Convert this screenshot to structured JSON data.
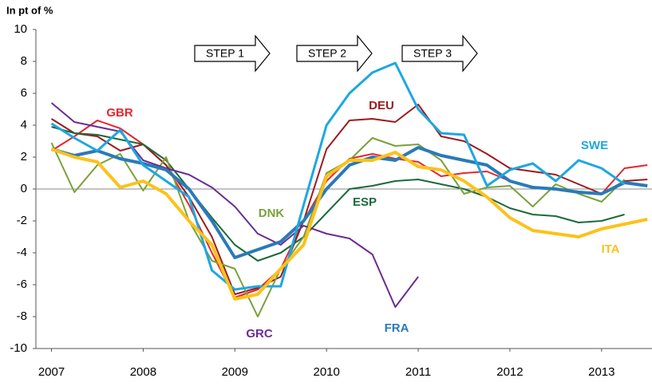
{
  "chart_data": {
    "type": "line",
    "y_label": "In pt of %",
    "xlim": [
      2006.83,
      2013.55
    ],
    "xticks": [
      2007,
      2008,
      2009,
      2010,
      2011,
      2012,
      2013
    ],
    "ylim": [
      -10,
      10
    ],
    "yticks": [
      -10,
      -8,
      -6,
      -4,
      -2,
      0,
      2,
      4,
      6,
      8,
      10
    ],
    "zero_line": true,
    "annotations": [
      "STEP 1",
      "STEP 2",
      "STEP 3"
    ],
    "x": [
      2007,
      2007.25,
      2007.5,
      2007.75,
      2008,
      2008.25,
      2008.5,
      2008.75,
      2009,
      2009.25,
      2009.5,
      2009.75,
      2010,
      2010.25,
      2010.5,
      2010.75,
      2011,
      2011.25,
      2011.5,
      2011.75,
      2012,
      2012.25,
      2012.5,
      2012.75,
      2013,
      2013.25,
      2013.5
    ],
    "series": [
      {
        "name": "GBR",
        "color": "#e8262c",
        "width": 2,
        "values": [
          2.4,
          3.3,
          4.3,
          3.8,
          2.8,
          1.5,
          -1,
          -4,
          -6.8,
          -6.3,
          -5,
          -2,
          0.5,
          1.9,
          2.2,
          1.9,
          1.7,
          0.8,
          1.0,
          1.1,
          0.5,
          0.1,
          0,
          -0.2,
          -0.3,
          1.3,
          1.5
        ]
      },
      {
        "name": "DEU",
        "color": "#9b1b1e",
        "width": 2,
        "values": [
          4.4,
          3.5,
          3.3,
          2.4,
          2.8,
          1.5,
          -0.5,
          -3,
          -6.6,
          -6.2,
          -5.5,
          -2,
          2.5,
          4.3,
          4.4,
          4.2,
          5.3,
          3.3,
          3.0,
          2.2,
          1.3,
          1.1,
          0.9,
          0.3,
          -0.3,
          0.5,
          0.6
        ]
      },
      {
        "name": "ESP",
        "color": "#1a6b3a",
        "width": 2,
        "values": [
          3.9,
          3.5,
          3.4,
          3.1,
          2.8,
          1.8,
          0,
          -1.8,
          -3.5,
          -4.5,
          -4.0,
          -3.0,
          -1.5,
          0,
          0.2,
          0.5,
          0.6,
          0.3,
          0,
          -0.5,
          -1.2,
          -1.6,
          -1.7,
          -2.1,
          -2.0,
          -1.6,
          null
        ]
      },
      {
        "name": "DNK",
        "color": "#7aa03a",
        "width": 2,
        "values": [
          2.9,
          -0.2,
          1.5,
          2.2,
          -0.1,
          2,
          -2,
          -4.5,
          -5,
          -8,
          -5,
          -3,
          1,
          1.8,
          3.2,
          2.7,
          2.8,
          1.8,
          -0.3,
          0.1,
          0.2,
          -1.1,
          0.3,
          -0.3,
          -0.8,
          0.6,
          null
        ]
      },
      {
        "name": "GRC",
        "color": "#6a2c91",
        "width": 2,
        "values": [
          5.4,
          4.2,
          3.9,
          3.6,
          1.8,
          1.3,
          0.9,
          0.1,
          -1.1,
          -2.8,
          -3.5,
          -2.3,
          -2.8,
          -3.1,
          -4.1,
          -7.4,
          -5.5,
          null,
          null,
          null,
          null,
          null,
          null,
          null,
          null,
          null,
          null
        ]
      },
      {
        "name": "FRA",
        "color": "#2a7ab8",
        "width": 4,
        "values": [
          2.5,
          2.1,
          2.4,
          1.9,
          1.6,
          1.2,
          0,
          -2,
          -4.3,
          -3.8,
          -3.3,
          -2.0,
          0,
          1.5,
          2.0,
          1.8,
          2.6,
          2.1,
          1.8,
          1.5,
          0.5,
          0.1,
          0,
          -0.2,
          -0.3,
          0.4,
          0.2
        ]
      },
      {
        "name": "SWE",
        "color": "#1ea7e0",
        "width": 3,
        "values": [
          4.1,
          3.2,
          2.4,
          3.7,
          1.5,
          0.5,
          -0.5,
          -5.1,
          -6.3,
          -6.1,
          -6.1,
          -1,
          4,
          6,
          7.3,
          7.9,
          5,
          3.5,
          3.4,
          0.2,
          1.2,
          1.6,
          0.5,
          1.8,
          1.3,
          0.3,
          null
        ]
      },
      {
        "name": "ITA",
        "color": "#fbc21a",
        "width": 4,
        "values": [
          2.5,
          2.0,
          1.7,
          0.1,
          0.5,
          -0.3,
          -2,
          -3.5,
          -6.9,
          -6.6,
          -5,
          -3.5,
          0.8,
          1.8,
          1.8,
          2.3,
          1.4,
          1.2,
          0.5,
          -0.5,
          -1.8,
          -2.6,
          -2.8,
          -3.0,
          -2.5,
          -2.2,
          -1.9
        ]
      }
    ]
  }
}
